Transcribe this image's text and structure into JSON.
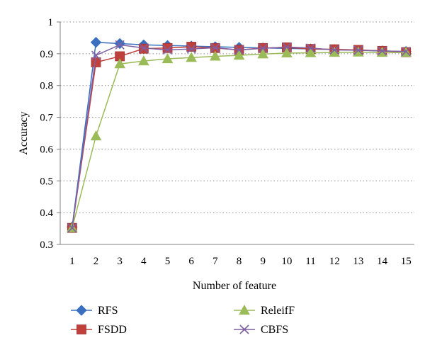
{
  "chart_data": {
    "type": "line",
    "xlabel": "Number of feature",
    "ylabel": "Accuracy",
    "x": [
      1,
      2,
      3,
      4,
      5,
      6,
      7,
      8,
      9,
      10,
      11,
      12,
      13,
      14,
      15
    ],
    "xticks": [
      "1",
      "2",
      "3",
      "4",
      "5",
      "6",
      "7",
      "8",
      "9",
      "10",
      "11",
      "12",
      "13",
      "14",
      "15"
    ],
    "ylim": [
      0.3,
      1
    ],
    "yticks": [
      "0.3",
      "0.4",
      "0.5",
      "0.6",
      "0.7",
      "0.8",
      "0.9",
      "1"
    ],
    "grid": "horizontal-dotted",
    "legend_position": "bottom",
    "series": [
      {
        "name": "RFS",
        "color": "#3a6fbf",
        "marker": "diamond",
        "values": [
          0.355,
          0.936,
          0.932,
          0.928,
          0.926,
          0.924,
          0.922,
          0.92,
          0.918,
          0.917,
          0.915,
          0.913,
          0.911,
          0.909,
          0.907
        ]
      },
      {
        "name": "FSDD",
        "color": "#c0403c",
        "marker": "square",
        "values": [
          0.352,
          0.873,
          0.892,
          0.916,
          0.918,
          0.922,
          0.918,
          0.912,
          0.918,
          0.92,
          0.915,
          0.914,
          0.912,
          0.909,
          0.905
        ]
      },
      {
        "name": "ReleifF",
        "color": "#9bbb59",
        "marker": "triangle",
        "values": [
          0.352,
          0.641,
          0.868,
          0.877,
          0.884,
          0.888,
          0.892,
          0.895,
          0.899,
          0.902,
          0.903,
          0.904,
          0.905,
          0.904,
          0.904
        ]
      },
      {
        "name": "CBFS",
        "color": "#7e5fa3",
        "marker": "x",
        "values": [
          0.352,
          0.895,
          0.928,
          0.918,
          0.912,
          0.915,
          0.919,
          0.912,
          0.917,
          0.921,
          0.918,
          0.912,
          0.911,
          0.909,
          0.907
        ]
      }
    ]
  }
}
